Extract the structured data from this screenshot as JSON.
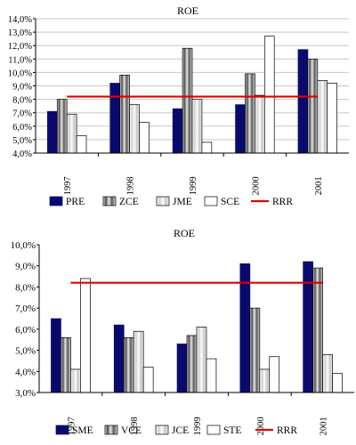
{
  "colors": {
    "navy": "#0a0a6e",
    "striped_dark": "#7a7a7a",
    "striped_light": "#d8d8d8",
    "white": "#ffffff",
    "ref_line": "#e00000",
    "grid": "#c8c8c8"
  },
  "chart_data": [
    {
      "type": "bar",
      "title": "ROE",
      "categories": [
        "1997",
        "1998",
        "1999",
        "2000",
        "2001"
      ],
      "ylim": [
        4.0,
        14.0
      ],
      "ytick_step": 1.0,
      "ytick_labels": [
        "4,0%",
        "5,0%",
        "6,0%",
        "7,0%",
        "8,0%",
        "9,0%",
        "10,0%",
        "11,0%",
        "12,0%",
        "13,0%",
        "14,0%"
      ],
      "grid": true,
      "legend_position": "bottom",
      "series": [
        {
          "name": "PRE",
          "pattern": "navy",
          "values": [
            7.1,
            9.2,
            7.3,
            7.6,
            11.7
          ]
        },
        {
          "name": "ZCE",
          "pattern": "striped_dark",
          "values": [
            8.0,
            9.8,
            11.8,
            9.9,
            11.0
          ]
        },
        {
          "name": "JME",
          "pattern": "striped_light",
          "values": [
            6.9,
            7.6,
            8.0,
            8.3,
            9.4
          ]
        },
        {
          "name": "SCE",
          "pattern": "white",
          "values": [
            5.3,
            6.3,
            4.8,
            12.7,
            9.2
          ]
        }
      ],
      "reference_line": {
        "name": "RRR",
        "value": 8.2
      }
    },
    {
      "type": "bar",
      "title": "ROE",
      "categories": [
        "1997",
        "1998",
        "1999",
        "2000",
        "2001"
      ],
      "ylim": [
        3.0,
        10.0
      ],
      "ytick_step": 1.0,
      "ytick_labels": [
        "3,0%",
        "4,0%",
        "5,0%",
        "6,0%",
        "7,0%",
        "8,0%",
        "9,0%",
        "10,0%"
      ],
      "grid": false,
      "legend_position": "bottom",
      "series": [
        {
          "name": "SME",
          "pattern": "navy",
          "values": [
            6.5,
            6.2,
            5.3,
            9.1,
            9.2
          ]
        },
        {
          "name": "VCE",
          "pattern": "striped_dark",
          "values": [
            5.6,
            5.6,
            5.7,
            7.0,
            8.9
          ]
        },
        {
          "name": "JCE",
          "pattern": "striped_light",
          "values": [
            4.1,
            5.9,
            6.1,
            4.1,
            4.8
          ]
        },
        {
          "name": "STE",
          "pattern": "white",
          "values": [
            8.4,
            4.2,
            4.6,
            4.7,
            3.9
          ]
        }
      ],
      "reference_line": {
        "name": "RRR",
        "value": 8.2
      }
    }
  ]
}
